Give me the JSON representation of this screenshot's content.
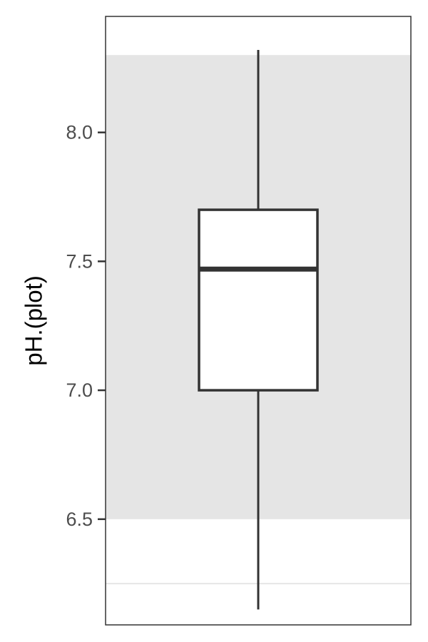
{
  "chart_data": {
    "type": "box",
    "ylabel": "pH.(plot)",
    "xlabel": "",
    "ylim": [
      6.09,
      8.45
    ],
    "yticks": [
      6.5,
      7.0,
      7.5,
      8.0
    ],
    "ytick_labels": [
      "6.5",
      "7.0",
      "7.5",
      "8.0"
    ],
    "box": {
      "min": 6.15,
      "q1": 7.0,
      "median": 7.47,
      "q3": 7.7,
      "max": 8.32
    },
    "shaded_band": {
      "from": 6.5,
      "to": 8.3,
      "color": "#e5e5e5"
    },
    "reference_line": {
      "y": 6.25,
      "color": "#e6e6e6"
    },
    "grid": false,
    "colors": {
      "box_fill": "#ffffff",
      "box_stroke": "#333333",
      "panel_border": "#333333"
    }
  }
}
